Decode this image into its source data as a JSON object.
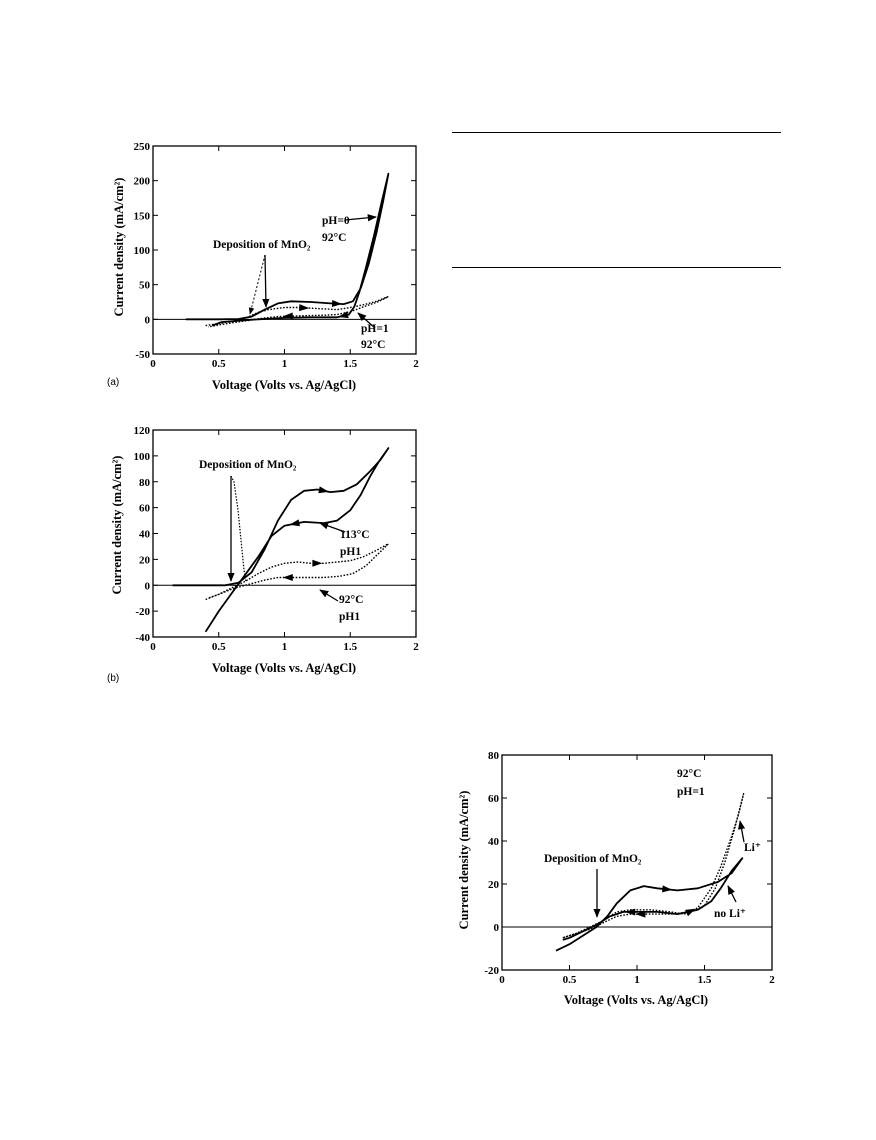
{
  "colors": {
    "ink": "#000000",
    "background": "#ffffff"
  },
  "page_rules": [
    "top",
    "bottom"
  ],
  "chart_data": [
    {
      "type": "line",
      "panel_label": "(a)",
      "xlabel": "Voltage (Volts vs. Ag/AgCl)",
      "ylabel": "Current density (mA/cm²)",
      "xlim": [
        0,
        2
      ],
      "ylim": [
        -50,
        250
      ],
      "xticks": [
        0,
        0.5,
        1,
        1.5,
        2
      ],
      "xtick_labels": [
        "0",
        "0.5",
        "1",
        "1.5",
        "2"
      ],
      "yticks": [
        -50,
        0,
        50,
        100,
        150,
        200,
        250
      ],
      "ytick_labels": [
        "-50",
        "0",
        "50",
        "100",
        "150",
        "200",
        "250"
      ],
      "grid": false,
      "zero_line": true,
      "series": [
        {
          "style": "solid",
          "points": [
            [
              0.25,
              0
            ],
            [
              0.5,
              0
            ],
            [
              0.65,
              0.5
            ],
            [
              0.75,
              4
            ],
            [
              0.85,
              14
            ],
            [
              0.95,
              23
            ],
            [
              1.05,
              26
            ],
            [
              1.2,
              25
            ],
            [
              1.35,
              23
            ],
            [
              1.45,
              22
            ],
            [
              1.52,
              26
            ],
            [
              1.58,
              45
            ],
            [
              1.64,
              80
            ],
            [
              1.7,
              125
            ],
            [
              1.75,
              170
            ],
            [
              1.79,
              210
            ],
            [
              1.74,
              170
            ],
            [
              1.68,
              120
            ],
            [
              1.62,
              75
            ],
            [
              1.57,
              40
            ],
            [
              1.53,
              18
            ],
            [
              1.49,
              7
            ],
            [
              1.4,
              3
            ],
            [
              1.2,
              3
            ],
            [
              1.0,
              2
            ],
            [
              0.8,
              0
            ],
            [
              0.65,
              -2
            ],
            [
              0.52,
              -4
            ],
            [
              0.45,
              -9
            ]
          ]
        },
        {
          "style": "dotted",
          "points": [
            [
              0.4,
              -9
            ],
            [
              0.5,
              -6
            ],
            [
              0.6,
              -3
            ],
            [
              0.7,
              1
            ],
            [
              0.75,
              6
            ],
            [
              0.8,
              10
            ],
            [
              0.88,
              14
            ],
            [
              1.0,
              17
            ],
            [
              1.1,
              17
            ],
            [
              1.2,
              16
            ],
            [
              1.3,
              15
            ],
            [
              1.4,
              14
            ],
            [
              1.5,
              17
            ],
            [
              1.6,
              21
            ],
            [
              1.7,
              26
            ],
            [
              1.79,
              33
            ],
            [
              1.72,
              26
            ],
            [
              1.6,
              18
            ],
            [
              1.5,
              11
            ],
            [
              1.4,
              7
            ],
            [
              1.3,
              6
            ],
            [
              1.1,
              5
            ],
            [
              0.95,
              4
            ],
            [
              0.85,
              2
            ],
            [
              0.75,
              -1
            ],
            [
              0.6,
              -5
            ],
            [
              0.5,
              -8
            ],
            [
              0.42,
              -11
            ]
          ]
        }
      ],
      "annotations": [
        {
          "text": "Deposition of MnO₂"
        },
        {
          "text": "pH=0"
        },
        {
          "text": "92°C"
        },
        {
          "text": "pH=1"
        },
        {
          "text": "92°C"
        }
      ]
    },
    {
      "type": "line",
      "panel_label": "(b)",
      "xlabel": "Voltage (Volts vs. Ag/AgCl)",
      "ylabel": "Current density (mA/cm²)",
      "xlim": [
        0,
        2
      ],
      "ylim": [
        -40,
        120
      ],
      "xticks": [
        0,
        0.5,
        1,
        1.5,
        2
      ],
      "xtick_labels": [
        "0",
        "0.5",
        "1",
        "1.5",
        "2"
      ],
      "yticks": [
        -40,
        -20,
        0,
        20,
        40,
        60,
        80,
        100,
        120
      ],
      "ytick_labels": [
        "-40",
        "-20",
        "0",
        "20",
        "40",
        "60",
        "80",
        "100",
        "120"
      ],
      "grid": false,
      "zero_line": true,
      "series": [
        {
          "style": "solid",
          "points": [
            [
              0.15,
              0
            ],
            [
              0.4,
              0
            ],
            [
              0.55,
              0
            ],
            [
              0.65,
              2
            ],
            [
              0.75,
              10
            ],
            [
              0.85,
              28
            ],
            [
              0.95,
              50
            ],
            [
              1.05,
              66
            ],
            [
              1.15,
              73
            ],
            [
              1.25,
              74
            ],
            [
              1.35,
              72
            ],
            [
              1.45,
              73
            ],
            [
              1.55,
              78
            ],
            [
              1.65,
              88
            ],
            [
              1.73,
              97
            ],
            [
              1.79,
              106
            ],
            [
              1.72,
              96
            ],
            [
              1.65,
              84
            ],
            [
              1.58,
              70
            ],
            [
              1.5,
              58
            ],
            [
              1.4,
              50
            ],
            [
              1.3,
              48
            ],
            [
              1.15,
              49
            ],
            [
              1.0,
              46
            ],
            [
              0.9,
              38
            ],
            [
              0.8,
              22
            ],
            [
              0.7,
              8
            ],
            [
              0.6,
              -6
            ],
            [
              0.5,
              -20
            ],
            [
              0.4,
              -36
            ]
          ]
        },
        {
          "style": "dotted",
          "points": [
            [
              0.4,
              -11
            ],
            [
              0.5,
              -7
            ],
            [
              0.6,
              -2
            ],
            [
              0.7,
              3
            ],
            [
              0.8,
              9
            ],
            [
              0.9,
              14
            ],
            [
              1.0,
              17
            ],
            [
              1.1,
              18
            ],
            [
              1.2,
              17
            ],
            [
              1.3,
              17
            ],
            [
              1.4,
              18
            ],
            [
              1.5,
              19
            ],
            [
              1.6,
              22
            ],
            [
              1.7,
              27
            ],
            [
              1.79,
              32
            ],
            [
              1.72,
              25
            ],
            [
              1.62,
              15
            ],
            [
              1.52,
              9
            ],
            [
              1.42,
              7
            ],
            [
              1.3,
              6
            ],
            [
              1.1,
              6
            ],
            [
              0.95,
              6
            ],
            [
              0.85,
              4
            ],
            [
              0.7,
              0
            ],
            [
              0.6,
              -3
            ],
            [
              0.5,
              -7
            ],
            [
              0.42,
              -10
            ]
          ]
        }
      ],
      "annotations": [
        {
          "text": "Deposition of MnO₂"
        },
        {
          "text": "113°C"
        },
        {
          "text": "pH1"
        },
        {
          "text": "92°C"
        },
        {
          "text": "pH1"
        }
      ]
    },
    {
      "type": "line",
      "panel_label": "",
      "xlabel": "Voltage (Volts vs. Ag/AgCl)",
      "ylabel": "Current density (mA/cm²)",
      "xlim": [
        0,
        2
      ],
      "ylim": [
        -20,
        80
      ],
      "xticks": [
        0,
        0.5,
        1,
        1.5,
        2
      ],
      "xtick_labels": [
        "0",
        "0.5",
        "1",
        "1.5",
        "2"
      ],
      "yticks": [
        -20,
        0,
        20,
        40,
        60,
        80
      ],
      "ytick_labels": [
        "-20",
        "0",
        "20",
        "40",
        "60",
        "80"
      ],
      "grid": false,
      "zero_line": true,
      "series": [
        {
          "style": "solid",
          "points": [
            [
              0.4,
              -11
            ],
            [
              0.5,
              -8
            ],
            [
              0.6,
              -4
            ],
            [
              0.7,
              0
            ],
            [
              0.78,
              5
            ],
            [
              0.85,
              11
            ],
            [
              0.95,
              17
            ],
            [
              1.05,
              19
            ],
            [
              1.15,
              18
            ],
            [
              1.3,
              17
            ],
            [
              1.45,
              18
            ],
            [
              1.6,
              21
            ],
            [
              1.7,
              25
            ],
            [
              1.78,
              32
            ],
            [
              1.7,
              26
            ],
            [
              1.62,
              18
            ],
            [
              1.55,
              12
            ],
            [
              1.45,
              8
            ],
            [
              1.3,
              6
            ],
            [
              1.15,
              7
            ],
            [
              1.0,
              7
            ],
            [
              0.9,
              7
            ],
            [
              0.8,
              5
            ],
            [
              0.7,
              1
            ],
            [
              0.6,
              -2
            ],
            [
              0.5,
              -5
            ],
            [
              0.45,
              -6
            ]
          ]
        },
        {
          "style": "dotted",
          "points": [
            [
              0.45,
              -5
            ],
            [
              0.55,
              -3
            ],
            [
              0.65,
              0
            ],
            [
              0.75,
              3
            ],
            [
              0.85,
              7
            ],
            [
              0.95,
              8
            ],
            [
              1.1,
              8
            ],
            [
              1.25,
              7
            ],
            [
              1.35,
              6
            ],
            [
              1.45,
              9
            ],
            [
              1.55,
              18
            ],
            [
              1.62,
              28
            ],
            [
              1.7,
              42
            ],
            [
              1.75,
              52
            ],
            [
              1.79,
              62
            ],
            [
              1.72,
              45
            ],
            [
              1.65,
              30
            ],
            [
              1.58,
              18
            ],
            [
              1.5,
              10
            ],
            [
              1.4,
              7
            ],
            [
              1.25,
              6
            ],
            [
              1.1,
              6
            ],
            [
              0.95,
              6
            ],
            [
              0.85,
              5
            ],
            [
              0.75,
              2
            ],
            [
              0.65,
              -1
            ],
            [
              0.5,
              -4
            ],
            [
              0.45,
              -5
            ]
          ]
        }
      ],
      "annotations": [
        {
          "text": "92°C"
        },
        {
          "text": "pH=1"
        },
        {
          "text": "Deposition of MnO₂"
        },
        {
          "text": "Li⁺"
        },
        {
          "text": "no Li⁺"
        }
      ]
    }
  ]
}
